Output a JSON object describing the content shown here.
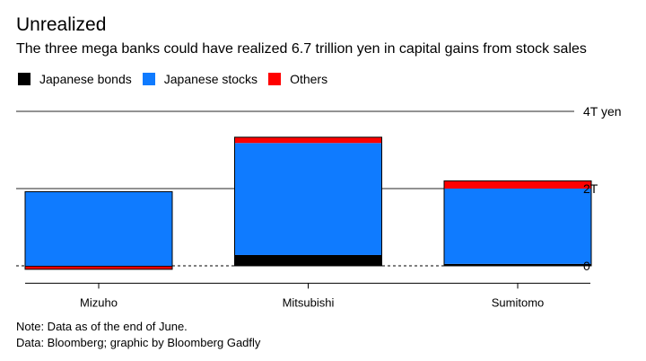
{
  "title": "Unrealized",
  "subtitle": "The three mega banks could have realized 6.7 trillion yen in capital gains from stock sales",
  "legend": [
    {
      "label": "Japanese bonds",
      "color": "#000000"
    },
    {
      "label": "Japanese stocks",
      "color": "#0f7bff"
    },
    {
      "label": "Others",
      "color": "#ff0000"
    }
  ],
  "note": "Note: Data as of the end of June.",
  "source": "Data: Bloomberg; graphic by Bloomberg Gadfly",
  "chart_data": {
    "type": "bar",
    "stacked": true,
    "title": "Unrealized",
    "subtitle": "The three mega banks could have realized 6.7 trillion yen in capital gains from stock sales",
    "xlabel": "",
    "ylabel": "",
    "unit": "trillion yen",
    "categories": [
      "Mizuho",
      "Mitsubishi",
      "Sumitomo"
    ],
    "series": [
      {
        "name": "Japanese bonds",
        "color": "#000000",
        "values": [
          -0.02,
          0.28,
          0.05
        ]
      },
      {
        "name": "Japanese stocks",
        "color": "#0f7bff",
        "values": [
          1.92,
          2.9,
          1.95
        ]
      },
      {
        "name": "Others",
        "color": "#ff0000",
        "values": [
          -0.07,
          0.15,
          0.2
        ]
      }
    ],
    "ylim": [
      -0.45,
      4
    ],
    "yticks": [
      {
        "value": 0,
        "label": "0"
      },
      {
        "value": 2,
        "label": "2T"
      },
      {
        "value": 4,
        "label": "4T yen"
      }
    ],
    "grid": true,
    "legend_position": "top-left"
  }
}
